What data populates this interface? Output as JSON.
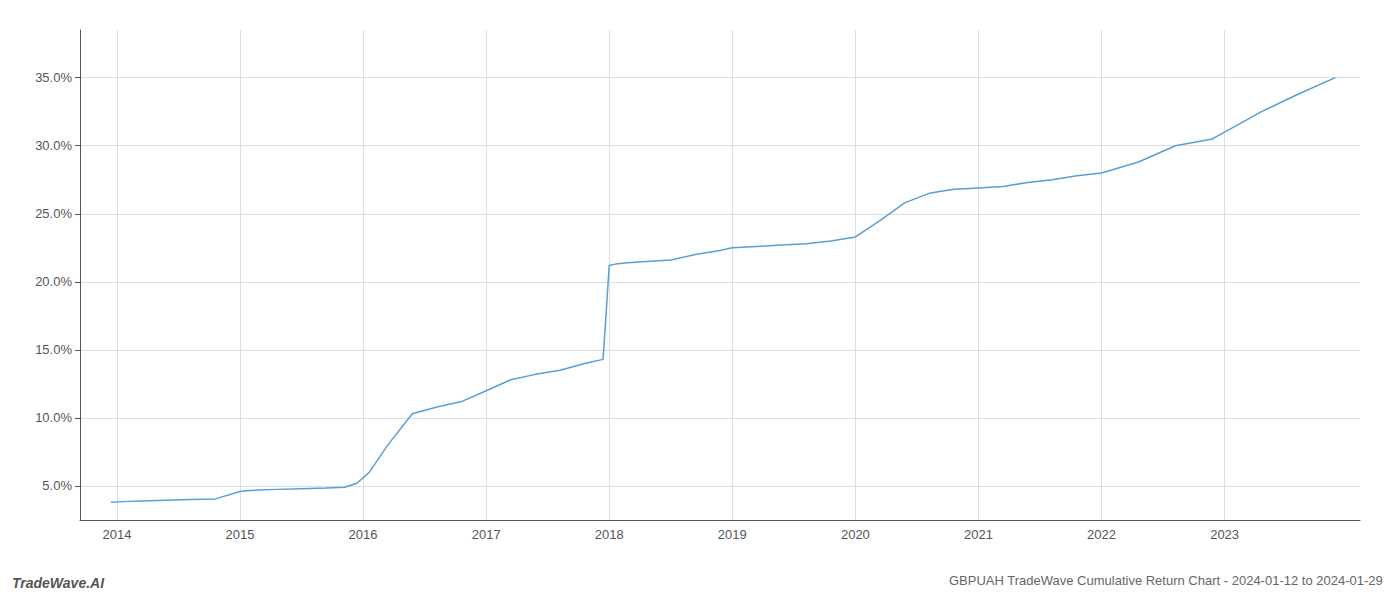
{
  "chart_data": {
    "type": "line",
    "title": "GBPUAH TradeWave Cumulative Return Chart - 2024-01-12 to 2024-01-29",
    "annotations": [
      "TradeWave.AI"
    ],
    "color": "#5a9fd4",
    "grid": true,
    "x": [
      2013.95,
      2014.05,
      2014.2,
      2014.4,
      2014.6,
      2014.8,
      2015.0,
      2015.05,
      2015.15,
      2015.3,
      2015.5,
      2015.7,
      2015.85,
      2015.95,
      2016.05,
      2016.2,
      2016.4,
      2016.6,
      2016.8,
      2017.0,
      2017.2,
      2017.4,
      2017.6,
      2017.8,
      2017.95,
      2018.0,
      2018.05,
      2018.15,
      2018.3,
      2018.5,
      2018.7,
      2018.9,
      2019.0,
      2019.2,
      2019.4,
      2019.6,
      2019.8,
      2020.0,
      2020.2,
      2020.4,
      2020.6,
      2020.8,
      2021.0,
      2021.2,
      2021.4,
      2021.6,
      2021.8,
      2022.0,
      2022.3,
      2022.6,
      2022.9,
      2023.0,
      2023.3,
      2023.6,
      2023.9
    ],
    "values": [
      3.8,
      3.85,
      3.9,
      3.95,
      4.0,
      4.05,
      4.6,
      4.65,
      4.7,
      4.75,
      4.8,
      4.85,
      4.9,
      5.2,
      6.0,
      8.0,
      10.3,
      10.8,
      11.2,
      12.0,
      12.8,
      13.2,
      13.5,
      14.0,
      14.3,
      21.2,
      21.3,
      21.4,
      21.5,
      21.6,
      22.0,
      22.3,
      22.5,
      22.6,
      22.7,
      22.8,
      23.0,
      23.3,
      24.5,
      25.8,
      26.5,
      26.8,
      26.9,
      27.0,
      27.3,
      27.5,
      27.8,
      28.0,
      28.8,
      30.0,
      30.5,
      31.0,
      32.5,
      33.8,
      35.0
    ],
    "xlim": [
      2013.7,
      2024.1
    ],
    "xticks": [
      2014,
      2015,
      2016,
      2017,
      2018,
      2019,
      2020,
      2021,
      2022,
      2023
    ],
    "ylim": [
      2.5,
      38.5
    ],
    "yticks": [
      {
        "value": 5.0,
        "label": "5.0%"
      },
      {
        "value": 10.0,
        "label": "10.0%"
      },
      {
        "value": 15.0,
        "label": "15.0%"
      },
      {
        "value": 20.0,
        "label": "20.0%"
      },
      {
        "value": 25.0,
        "label": "25.0%"
      },
      {
        "value": 30.0,
        "label": "30.0%"
      },
      {
        "value": 35.0,
        "label": "35.0%"
      }
    ]
  }
}
